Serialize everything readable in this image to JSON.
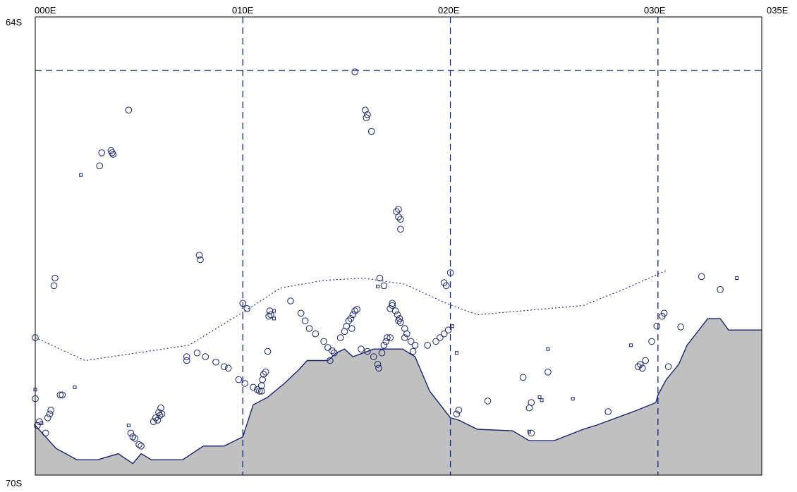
{
  "map": {
    "lon_labels": [
      "000E",
      "010E",
      "020E",
      "030E",
      "035E"
    ],
    "lat_labels": [
      "64S",
      "70S"
    ],
    "colors": {
      "frame": "#000000",
      "grid": "#1a2370",
      "land": "#c0c0c0",
      "coast": "#1a2370",
      "marker": "#1a2370",
      "front": "#1a2370"
    },
    "extent": {
      "lon": [
        0,
        35
      ],
      "lat": [
        -64,
        -70
      ]
    },
    "graticule": {
      "lon": [
        10,
        20,
        30
      ],
      "lat": [
        -64.7
      ]
    },
    "coastline": [
      [
        0,
        -69.35
      ],
      [
        0.5,
        -69.5
      ],
      [
        1,
        -69.65
      ],
      [
        2,
        -69.8
      ],
      [
        3,
        -69.8
      ],
      [
        4,
        -69.72
      ],
      [
        4.7,
        -69.85
      ],
      [
        5.1,
        -69.72
      ],
      [
        5.6,
        -69.8
      ],
      [
        7.1,
        -69.8
      ],
      [
        8.1,
        -69.62
      ],
      [
        9.1,
        -69.62
      ],
      [
        10,
        -69.5
      ],
      [
        10.5,
        -69.08
      ],
      [
        11.2,
        -68.98
      ],
      [
        12,
        -68.8
      ],
      [
        12.7,
        -68.62
      ],
      [
        13.1,
        -68.5
      ],
      [
        14.1,
        -68.5
      ],
      [
        14.5,
        -68.4
      ],
      [
        14.9,
        -68.35
      ],
      [
        15.3,
        -68.45
      ],
      [
        16.3,
        -68.35
      ],
      [
        17.7,
        -68.35
      ],
      [
        18.3,
        -68.45
      ],
      [
        19,
        -68.9
      ],
      [
        20,
        -69.25
      ],
      [
        20.4,
        -69.28
      ],
      [
        21.3,
        -69.4
      ],
      [
        23.0,
        -69.42
      ],
      [
        23.8,
        -69.55
      ],
      [
        25,
        -69.55
      ],
      [
        26.4,
        -69.4
      ],
      [
        27,
        -69.35
      ],
      [
        29,
        -69.15
      ],
      [
        29.9,
        -69.05
      ],
      [
        30,
        -68.95
      ],
      [
        30.4,
        -68.75
      ],
      [
        31,
        -68.55
      ],
      [
        31.4,
        -68.3
      ],
      [
        32.4,
        -67.95
      ],
      [
        33,
        -67.95
      ],
      [
        33.4,
        -68.1
      ],
      [
        35,
        -68.1
      ]
    ],
    "front_line": [
      [
        0,
        -68.2
      ],
      [
        2.4,
        -68.5
      ],
      [
        7.4,
        -68.3
      ],
      [
        10.4,
        -67.8
      ],
      [
        11.8,
        -67.55
      ],
      [
        13.9,
        -67.45
      ],
      [
        15.8,
        -67.42
      ],
      [
        17.8,
        -67.5
      ],
      [
        19.8,
        -67.75
      ],
      [
        21.3,
        -67.9
      ],
      [
        26.4,
        -67.78
      ],
      [
        28.5,
        -67.55
      ],
      [
        30.4,
        -67.32
      ]
    ],
    "circles": [
      [
        15.4,
        -64.72
      ],
      [
        4.5,
        -65.22
      ],
      [
        15.9,
        -65.22
      ],
      [
        15.95,
        -65.32
      ],
      [
        16.0,
        -65.28
      ],
      [
        16.2,
        -65.5
      ],
      [
        3.1,
        -65.95
      ],
      [
        3.2,
        -65.78
      ],
      [
        3.65,
        -65.75
      ],
      [
        3.75,
        -65.8
      ],
      [
        3.7,
        -65.78
      ],
      [
        17.4,
        -66.55
      ],
      [
        17.5,
        -66.52
      ],
      [
        17.5,
        -66.62
      ],
      [
        17.6,
        -66.65
      ],
      [
        17.6,
        -66.78
      ],
      [
        7.9,
        -67.12
      ],
      [
        7.95,
        -67.18
      ],
      [
        11.3,
        -67.85
      ],
      [
        11.35,
        -67.9
      ],
      [
        11.25,
        -67.92
      ],
      [
        0.95,
        -67.42
      ],
      [
        0.9,
        -67.52
      ],
      [
        19.7,
        -67.48
      ],
      [
        19.8,
        -67.52
      ],
      [
        20.0,
        -67.35
      ],
      [
        16.6,
        -67.42
      ],
      [
        16.8,
        -67.52
      ],
      [
        10.0,
        -67.75
      ],
      [
        10.2,
        -67.82
      ],
      [
        12.3,
        -67.72
      ],
      [
        12.8,
        -67.88
      ],
      [
        13.0,
        -67.98
      ],
      [
        13.2,
        -68.08
      ],
      [
        13.5,
        -68.15
      ],
      [
        13.9,
        -68.25
      ],
      [
        14.1,
        -68.33
      ],
      [
        14.3,
        -68.37
      ],
      [
        14.4,
        -68.4
      ],
      [
        14.2,
        -68.5
      ],
      [
        14.7,
        -68.2
      ],
      [
        14.9,
        -68.12
      ],
      [
        15.0,
        -68.05
      ],
      [
        15.1,
        -67.98
      ],
      [
        15.2,
        -67.95
      ],
      [
        15.3,
        -67.9
      ],
      [
        15.25,
        -68.08
      ],
      [
        15.4,
        -67.85
      ],
      [
        15.5,
        -67.83
      ],
      [
        15.7,
        -68.35
      ],
      [
        16.0,
        -68.38
      ],
      [
        16.3,
        -68.45
      ],
      [
        16.5,
        -68.55
      ],
      [
        16.55,
        -68.6
      ],
      [
        16.7,
        -68.4
      ],
      [
        16.8,
        -68.3
      ],
      [
        16.9,
        -68.25
      ],
      [
        17.1,
        -68.2
      ],
      [
        16.95,
        -68.2
      ],
      [
        17.1,
        -67.82
      ],
      [
        17.2,
        -67.75
      ],
      [
        17.35,
        -67.85
      ],
      [
        17.45,
        -67.9
      ],
      [
        17.5,
        -67.98
      ],
      [
        17.6,
        -68.0
      ],
      [
        17.8,
        -68.08
      ],
      [
        17.9,
        -68.15
      ],
      [
        18.1,
        -68.25
      ],
      [
        18.3,
        -68.3
      ],
      [
        18.2,
        -68.38
      ],
      [
        17.2,
        -67.78
      ],
      [
        17.55,
        -67.95
      ],
      [
        17.8,
        -68.2
      ],
      [
        18.9,
        -68.3
      ],
      [
        19.3,
        -68.25
      ],
      [
        19.5,
        -68.2
      ],
      [
        19.7,
        -68.15
      ],
      [
        19.9,
        -68.1
      ],
      [
        0.0,
        -68.2
      ],
      [
        0.0,
        -69.0
      ],
      [
        0.1,
        -69.35
      ],
      [
        0.2,
        -69.3
      ],
      [
        0.5,
        -69.45
      ],
      [
        0.6,
        -69.25
      ],
      [
        0.7,
        -69.2
      ],
      [
        0.75,
        -69.15
      ],
      [
        1.2,
        -68.95
      ],
      [
        1.3,
        -68.95
      ],
      [
        7.3,
        -68.5
      ],
      [
        7.3,
        -68.45
      ],
      [
        7.8,
        -68.4
      ],
      [
        8.2,
        -68.45
      ],
      [
        8.7,
        -68.52
      ],
      [
        9.1,
        -68.58
      ],
      [
        9.3,
        -68.6
      ],
      [
        9.8,
        -68.75
      ],
      [
        10.1,
        -68.8
      ],
      [
        10.5,
        -68.85
      ],
      [
        10.7,
        -68.88
      ],
      [
        10.8,
        -68.9
      ],
      [
        10.9,
        -68.83
      ],
      [
        10.95,
        -68.75
      ],
      [
        10.9,
        -68.9
      ],
      [
        11.0,
        -68.68
      ],
      [
        11.1,
        -68.65
      ],
      [
        11.2,
        -68.38
      ],
      [
        4.6,
        -69.45
      ],
      [
        4.7,
        -69.5
      ],
      [
        4.8,
        -69.52
      ],
      [
        5.0,
        -69.6
      ],
      [
        5.1,
        -69.62
      ],
      [
        5.7,
        -69.3
      ],
      [
        5.8,
        -69.25
      ],
      [
        5.9,
        -69.28
      ],
      [
        5.95,
        -69.18
      ],
      [
        6.0,
        -69.22
      ],
      [
        6.1,
        -69.2
      ],
      [
        6.05,
        -69.12
      ],
      [
        20.4,
        -69.15
      ],
      [
        20.3,
        -69.2
      ],
      [
        21.8,
        -69.03
      ],
      [
        23.5,
        -68.72
      ],
      [
        23.8,
        -69.12
      ],
      [
        23.9,
        -69.05
      ],
      [
        23.9,
        -69.45
      ],
      [
        24.7,
        -68.65
      ],
      [
        27.6,
        -69.17
      ],
      [
        29.05,
        -68.58
      ],
      [
        29.15,
        -68.55
      ],
      [
        29.25,
        -68.6
      ],
      [
        29.4,
        -68.5
      ],
      [
        29.7,
        -68.25
      ],
      [
        29.95,
        -68.05
      ],
      [
        30.2,
        -67.92
      ],
      [
        30.3,
        -67.88
      ],
      [
        30.5,
        -68.58
      ],
      [
        31.1,
        -68.06
      ],
      [
        32.1,
        -67.4
      ],
      [
        33.0,
        -67.57
      ]
    ],
    "squares": [
      [
        2.2,
        -66.07
      ],
      [
        0.0,
        -68.88
      ],
      [
        1.9,
        -68.85
      ],
      [
        0.3,
        -69.32
      ],
      [
        4.5,
        -69.35
      ],
      [
        11.5,
        -67.85
      ],
      [
        11.5,
        -67.95
      ],
      [
        16.5,
        -67.53
      ],
      [
        20.1,
        -68.05
      ],
      [
        20.3,
        -68.4
      ],
      [
        23.8,
        -69.43
      ],
      [
        24.3,
        -68.98
      ],
      [
        24.4,
        -69.02
      ],
      [
        24.7,
        -68.35
      ],
      [
        25.9,
        -69.0
      ],
      [
        28.7,
        -68.3
      ],
      [
        33.8,
        -67.42
      ]
    ]
  }
}
